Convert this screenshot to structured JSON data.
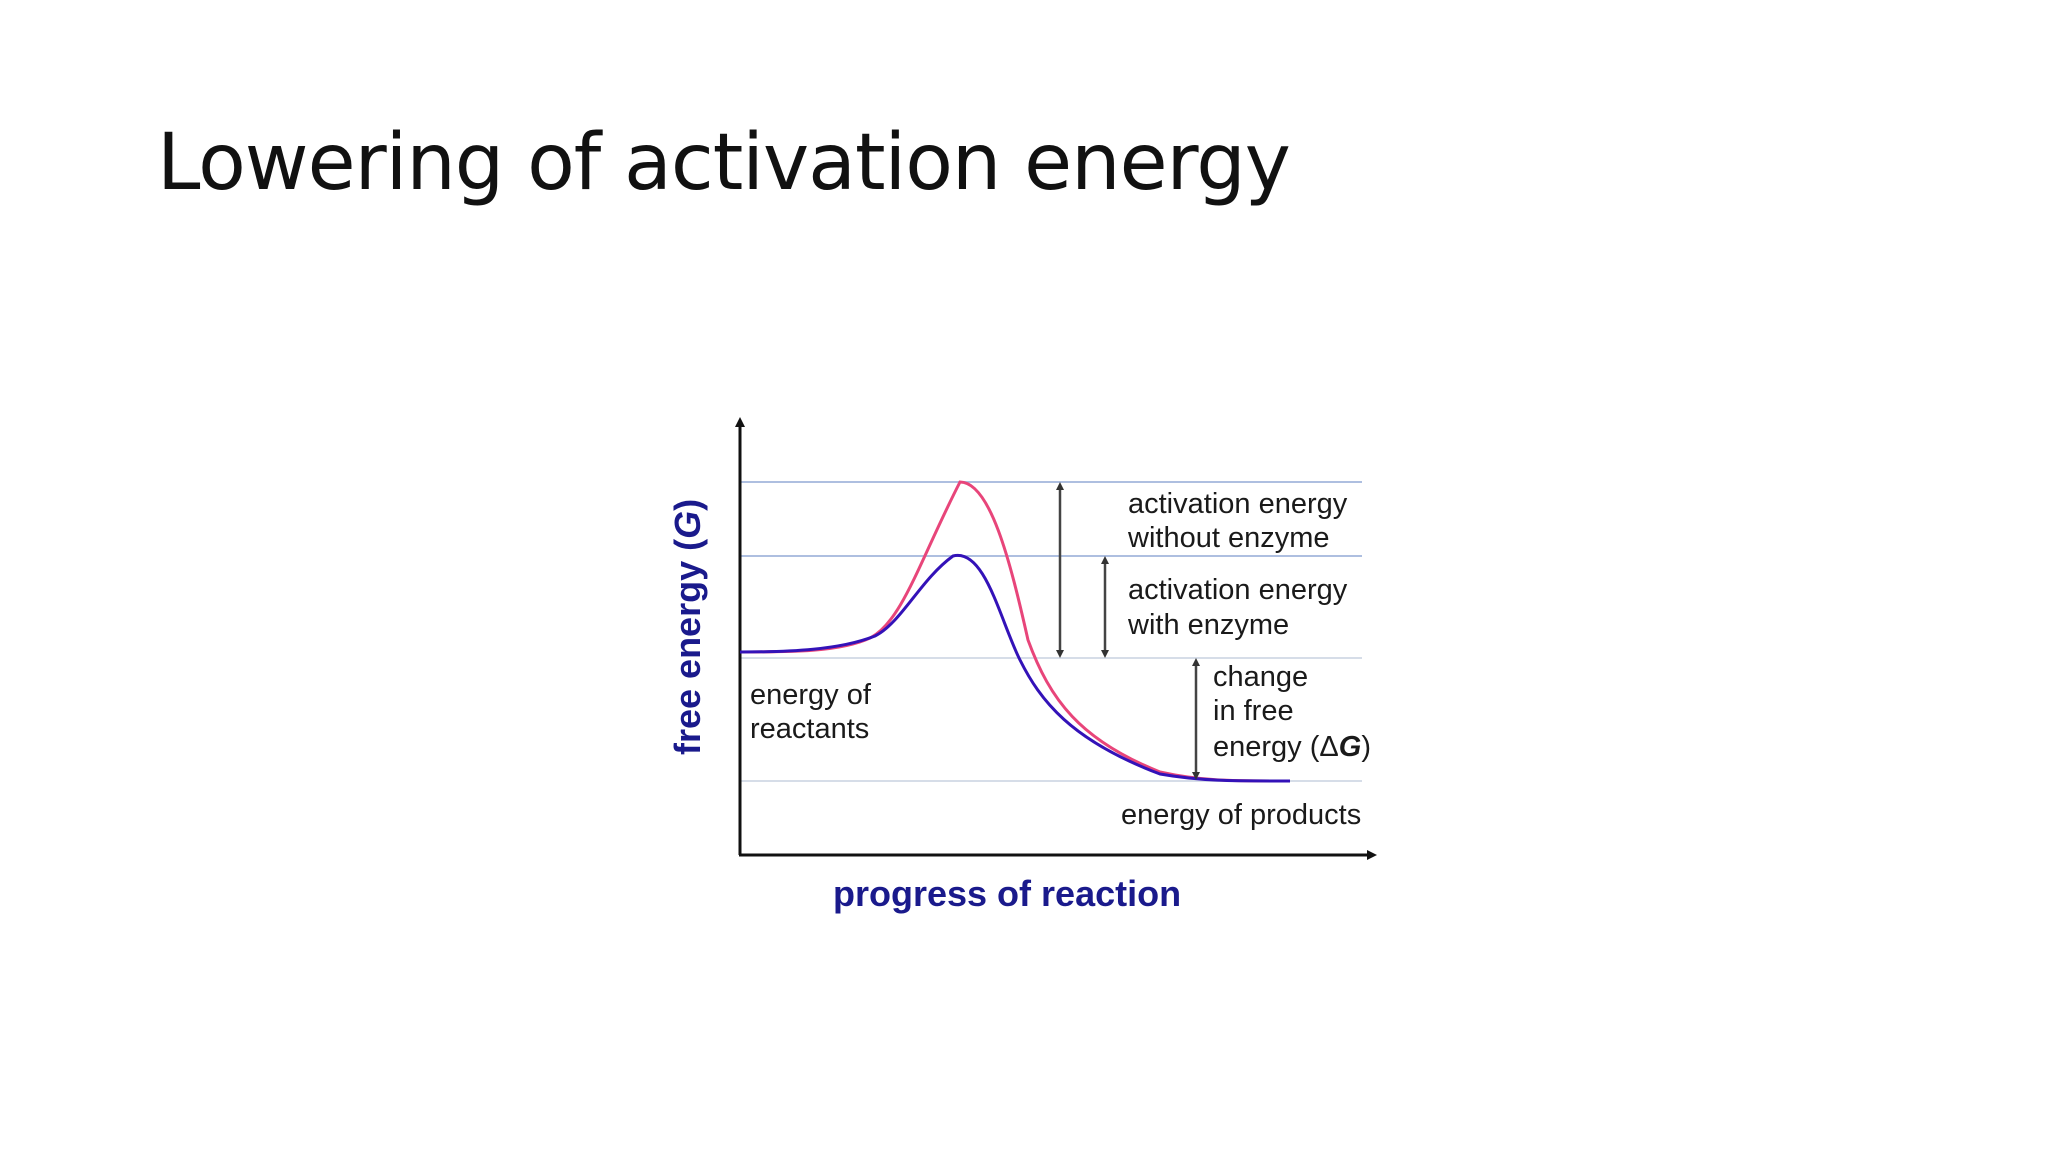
{
  "slide": {
    "title": "Lowering of activation energy"
  },
  "diagram": {
    "x_axis_label": "progress of reaction",
    "y_axis_label_main": "free energy (",
    "y_axis_label_symbol": "G",
    "y_axis_label_close": ")",
    "curves": [
      {
        "name": "without enzyme",
        "color": "#e8457a"
      },
      {
        "name": "with enzyme",
        "color": "#3312b8"
      }
    ],
    "annotations": {
      "activation_without": [
        "activation energy",
        "without enzyme"
      ],
      "activation_with": [
        "activation energy",
        "with enzyme"
      ],
      "delta_g": [
        "change",
        "in free",
        "energy (",
        "Δ",
        "G",
        ")"
      ],
      "reactants": [
        "energy of",
        "reactants"
      ],
      "products": "energy of products"
    },
    "colors": {
      "axis": "#111111",
      "guide_lines": "#aebfe0",
      "arrows": "#444444",
      "axis_title": "#1a1a8c"
    }
  }
}
